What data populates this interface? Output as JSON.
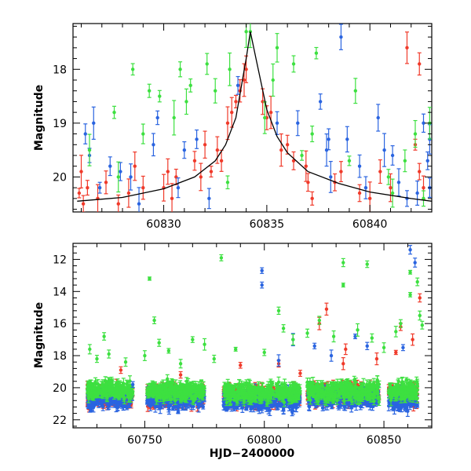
{
  "chart_data": [
    {
      "type": "scatter",
      "title": "",
      "xlabel": "",
      "ylabel": "Magnitude",
      "xlim": [
        60825.6,
        60843
      ],
      "ylim": [
        20.65,
        17.15
      ],
      "y_inverted": true,
      "xticks": [
        60830,
        60835,
        60840
      ],
      "xtick_labels": [
        "60830",
        "60835",
        "60840"
      ],
      "yticks": [
        18,
        19,
        20
      ],
      "ytick_labels": [
        "18",
        "19",
        "20"
      ],
      "grid": false,
      "legend": "none",
      "model_curve": {
        "color": "#000000",
        "peak_x": 60834.2,
        "peak_mag": 17.3,
        "baseline_mag": 20.48,
        "x": [
          60825.8,
          60828.0,
          60830.0,
          60831.5,
          60832.5,
          60833.0,
          60833.5,
          60834.0,
          60834.2,
          60834.5,
          60835.0,
          60835.5,
          60836.0,
          60837.0,
          60838.5,
          60840.0,
          60842.0,
          60843.0
        ],
        "y": [
          20.45,
          20.38,
          20.22,
          20.0,
          19.7,
          19.4,
          18.9,
          17.8,
          17.3,
          17.85,
          18.75,
          19.25,
          19.55,
          19.9,
          20.12,
          20.28,
          20.4,
          20.45
        ]
      },
      "series": [
        {
          "color": "#f03a2a",
          "points": [
            [
              60825.9,
              20.3
            ],
            [
              60826.0,
              19.9
            ],
            [
              60826.1,
              20.5
            ],
            [
              60826.3,
              20.2
            ],
            [
              60826.8,
              20.4
            ],
            [
              60827.2,
              20.1
            ],
            [
              60827.8,
              20.5
            ],
            [
              60828.3,
              20.3
            ],
            [
              60828.6,
              19.8
            ],
            [
              60829.0,
              20.2
            ],
            [
              60830.0,
              20.2
            ],
            [
              60830.2,
              19.9
            ],
            [
              60830.4,
              20.4
            ],
            [
              60830.6,
              20.0
            ],
            [
              60831.5,
              19.7
            ],
            [
              60831.8,
              20.0
            ],
            [
              60832.0,
              19.4
            ],
            [
              60832.3,
              19.9
            ],
            [
              60832.6,
              19.5
            ],
            [
              60832.8,
              19.7
            ],
            [
              60833.1,
              19.0
            ],
            [
              60833.3,
              18.8
            ],
            [
              60833.5,
              18.6
            ],
            [
              60833.7,
              18.4
            ],
            [
              60833.9,
              18.2
            ],
            [
              60834.0,
              18.0
            ],
            [
              60834.8,
              18.6
            ],
            [
              60835.0,
              18.9
            ],
            [
              60835.2,
              18.8
            ],
            [
              60835.7,
              19.5
            ],
            [
              60836.0,
              19.4
            ],
            [
              60836.3,
              19.7
            ],
            [
              60836.9,
              19.8
            ],
            [
              60837.0,
              20.1
            ],
            [
              60837.2,
              20.4
            ],
            [
              60838.3,
              20.1
            ],
            [
              60838.6,
              19.9
            ],
            [
              60839.5,
              20.3
            ],
            [
              60840.0,
              20.4
            ],
            [
              60840.5,
              19.9
            ],
            [
              60841.0,
              20.2
            ],
            [
              60841.8,
              17.6
            ],
            [
              60842.2,
              19.4
            ],
            [
              60842.4,
              19.9
            ],
            [
              60842.6,
              20.2
            ],
            [
              60842.4,
              17.9
            ]
          ]
        },
        {
          "color": "#2a64e0",
          "points": [
            [
              60826.2,
              19.2
            ],
            [
              60826.4,
              19.6
            ],
            [
              60826.6,
              19.0
            ],
            [
              60826.9,
              20.2
            ],
            [
              60827.4,
              19.8
            ],
            [
              60827.9,
              19.9
            ],
            [
              60828.4,
              20.0
            ],
            [
              60828.8,
              20.5
            ],
            [
              60829.5,
              19.4
            ],
            [
              60829.7,
              18.9
            ],
            [
              60830.7,
              20.2
            ],
            [
              60831.0,
              19.5
            ],
            [
              60831.6,
              19.3
            ],
            [
              60832.2,
              20.4
            ],
            [
              60833.6,
              18.3
            ],
            [
              60835.5,
              19.0
            ],
            [
              60836.5,
              19.0
            ],
            [
              60837.6,
              18.6
            ],
            [
              60837.9,
              19.5
            ],
            [
              60838.0,
              19.3
            ],
            [
              60838.1,
              20.0
            ],
            [
              60838.6,
              17.4
            ],
            [
              60838.9,
              19.3
            ],
            [
              60839.5,
              19.8
            ],
            [
              60839.8,
              20.2
            ],
            [
              60840.4,
              18.9
            ],
            [
              60840.7,
              19.5
            ],
            [
              60841.1,
              19.6
            ],
            [
              60841.4,
              20.1
            ],
            [
              60841.8,
              20.4
            ],
            [
              60842.3,
              20.3
            ],
            [
              60842.6,
              19.0
            ],
            [
              60842.8,
              19.7
            ],
            [
              60842.9,
              20.2
            ],
            [
              60842.9,
              19.3
            ]
          ]
        },
        {
          "color": "#3de040",
          "points": [
            [
              60826.4,
              19.5
            ],
            [
              60827.6,
              18.8
            ],
            [
              60827.8,
              20.0
            ],
            [
              60828.5,
              18.0
            ],
            [
              60829.0,
              19.2
            ],
            [
              60829.3,
              18.4
            ],
            [
              60829.8,
              18.5
            ],
            [
              60830.5,
              18.9
            ],
            [
              60830.8,
              18.0
            ],
            [
              60831.1,
              18.6
            ],
            [
              60831.3,
              18.3
            ],
            [
              60832.1,
              17.9
            ],
            [
              60832.5,
              18.4
            ],
            [
              60833.1,
              20.1
            ],
            [
              60833.2,
              18.0
            ],
            [
              60834.0,
              17.3
            ],
            [
              60834.2,
              17.3
            ],
            [
              60834.9,
              18.9
            ],
            [
              60835.3,
              18.2
            ],
            [
              60835.5,
              17.6
            ],
            [
              60836.3,
              17.9
            ],
            [
              60836.7,
              19.6
            ],
            [
              60837.2,
              19.2
            ],
            [
              60837.4,
              17.7
            ],
            [
              60839.0,
              19.7
            ],
            [
              60839.3,
              18.4
            ],
            [
              60840.9,
              20.0
            ],
            [
              60841.1,
              20.3
            ],
            [
              60841.7,
              19.7
            ],
            [
              60842.2,
              19.2
            ],
            [
              60842.6,
              20.4
            ],
            [
              60842.9,
              19.0
            ]
          ]
        }
      ]
    },
    {
      "type": "scatter",
      "title": "",
      "xlabel": "HJD−2400000",
      "ylabel": "Magnitude",
      "xlim": [
        60720,
        60870
      ],
      "ylim": [
        22.5,
        11.0
      ],
      "y_inverted": true,
      "xticks": [
        60750,
        60800,
        60850
      ],
      "xtick_labels": [
        "60750",
        "60800",
        "60850"
      ],
      "yticks": [
        12,
        14,
        16,
        18,
        20,
        22
      ],
      "ytick_labels": [
        "12",
        "14",
        "16",
        "18",
        "20",
        "22"
      ],
      "grid": false,
      "legend": "none",
      "series": [
        {
          "color": "#f03a2a",
          "dense_bands": [
            [
              60726,
              60745,
              20.5
            ],
            [
              60751,
              60775,
              20.5
            ],
            [
              60783,
              60815,
              20.5
            ],
            [
              60818,
              60848,
              20.4
            ],
            [
              60852,
              60864,
              20.5
            ]
          ],
          "points": [
            [
              60740,
              18.9
            ],
            [
              60765,
              19.2
            ],
            [
              60790,
              18.6
            ],
            [
              60806,
              18.5
            ],
            [
              60815,
              19.1
            ],
            [
              60823,
              16.0
            ],
            [
              60826,
              15.1
            ],
            [
              60833,
              18.5
            ],
            [
              60834,
              17.6
            ],
            [
              60847,
              18.2
            ],
            [
              60855,
              17.8
            ],
            [
              60857,
              16.2
            ],
            [
              60862,
              17.0
            ],
            [
              60865,
              14.4
            ]
          ]
        },
        {
          "color": "#2a64e0",
          "dense_bands": [
            [
              60726,
              60745,
              20.7
            ],
            [
              60751,
              60775,
              20.7
            ],
            [
              60783,
              60815,
              20.8
            ],
            [
              60818,
              60848,
              20.6
            ],
            [
              60852,
              60864,
              20.8
            ]
          ],
          "points": [
            [
              60745,
              19.8
            ],
            [
              60764,
              21.5
            ],
            [
              60799,
              12.7
            ],
            [
              60799,
              13.6
            ],
            [
              60806,
              18.3
            ],
            [
              60812,
              17.0
            ],
            [
              60821,
              17.4
            ],
            [
              60828,
              18.0
            ],
            [
              60838,
              16.8
            ],
            [
              60843,
              17.4
            ],
            [
              60858,
              17.5
            ],
            [
              60861,
              11.4
            ],
            [
              60863,
              12.2
            ]
          ]
        },
        {
          "color": "#3de040",
          "dense_bands": [
            [
              60726,
              60745,
              20.2
            ],
            [
              60751,
              60775,
              20.2
            ],
            [
              60783,
              60815,
              20.3
            ],
            [
              60818,
              60848,
              20.2
            ],
            [
              60852,
              60864,
              20.2
            ]
          ],
          "points": [
            [
              60727,
              17.6
            ],
            [
              60730,
              18.2
            ],
            [
              60733,
              16.8
            ],
            [
              60735,
              17.9
            ],
            [
              60742,
              18.4
            ],
            [
              60750,
              18.0
            ],
            [
              60752,
              13.2
            ],
            [
              60754,
              15.8
            ],
            [
              60756,
              17.2
            ],
            [
              60760,
              17.7
            ],
            [
              60765,
              18.5
            ],
            [
              60770,
              17.0
            ],
            [
              60775,
              17.3
            ],
            [
              60779,
              18.2
            ],
            [
              60782,
              11.9
            ],
            [
              60788,
              17.6
            ],
            [
              60800,
              17.8
            ],
            [
              60806,
              15.2
            ],
            [
              60808,
              16.3
            ],
            [
              60812,
              17.0
            ],
            [
              60818,
              16.6
            ],
            [
              60823,
              15.8
            ],
            [
              60829,
              16.8
            ],
            [
              60833,
              12.2
            ],
            [
              60833,
              13.6
            ],
            [
              60839,
              16.4
            ],
            [
              60843,
              12.3
            ],
            [
              60845,
              16.9
            ],
            [
              60850,
              17.5
            ],
            [
              60855,
              16.5
            ],
            [
              60857,
              16.0
            ],
            [
              60861,
              12.8
            ],
            [
              60861,
              14.2
            ],
            [
              60864,
              13.4
            ],
            [
              60865,
              15.5
            ],
            [
              60866,
              16.1
            ]
          ]
        }
      ]
    }
  ]
}
